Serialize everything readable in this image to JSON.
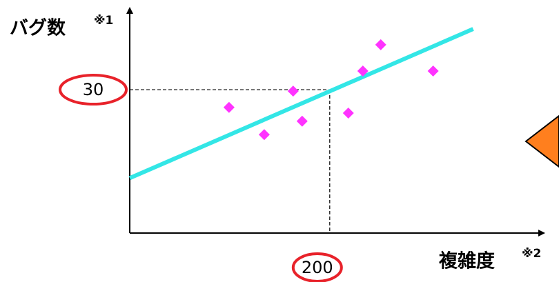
{
  "chart_data": {
    "type": "scatter",
    "y_label": "バグ数",
    "y_label_note": "※1",
    "x_label": "複雑度",
    "x_label_note": "※2",
    "x": [
      99.3,
      134.5,
      163.4,
      172.4,
      218.6,
      233.1,
      251.0,
      303.4
    ],
    "values": [
      26.3,
      20.6,
      29.7,
      23.4,
      25.1,
      33.9,
      39.4,
      33.9
    ],
    "color": "#ff33ff",
    "trend": {
      "x": [
        0,
        343.4
      ],
      "values": [
        11.5,
        42.7
      ],
      "color": "#33e6e6"
    },
    "xlim": [
      0,
      412
    ],
    "ylim": [
      0,
      46.6
    ],
    "xticks": [
      200
    ],
    "yticks": [
      30
    ],
    "tick_highlight_color": "#e8222a"
  }
}
